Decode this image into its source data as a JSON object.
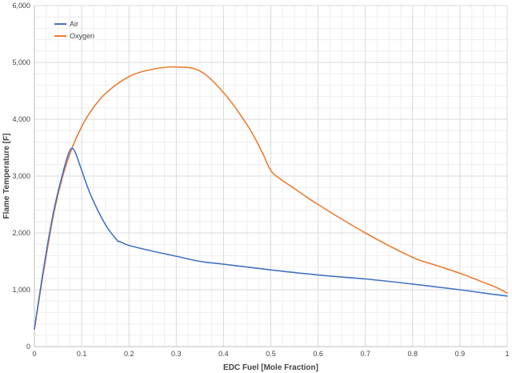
{
  "chart_data": {
    "type": "line",
    "title": "",
    "xlabel": "EDC Fuel [Mole Fraction]",
    "ylabel": "Flame Temperature [F]",
    "xlim": [
      0,
      1
    ],
    "ylim": [
      0,
      6000
    ],
    "x_ticks": [
      "0",
      "0.1",
      "0.2",
      "0.3",
      "0.4",
      "0.5",
      "0.6",
      "0.7",
      "0.8",
      "0.9",
      "1"
    ],
    "y_ticks": [
      "0",
      "1,000",
      "2,000",
      "3,000",
      "4,000",
      "5,000",
      "6,000"
    ],
    "grid": true,
    "legend_position": "top-left",
    "series": [
      {
        "name": "Air",
        "color": "#4472C4",
        "x": [
          0,
          0.02,
          0.04,
          0.06,
          0.075,
          0.085,
          0.1,
          0.12,
          0.15,
          0.175,
          0.18,
          0.2,
          0.25,
          0.3,
          0.35,
          0.4,
          0.5,
          0.6,
          0.7,
          0.8,
          0.9,
          0.97,
          1.0
        ],
        "y": [
          310,
          1400,
          2350,
          3050,
          3450,
          3440,
          3100,
          2650,
          2150,
          1870,
          1850,
          1780,
          1680,
          1590,
          1500,
          1450,
          1350,
          1260,
          1190,
          1100,
          1000,
          920,
          890
        ]
      },
      {
        "name": "Oxygen",
        "color": "#ED7D31",
        "x": [
          0,
          0.02,
          0.04,
          0.06,
          0.08,
          0.1,
          0.12,
          0.15,
          0.2,
          0.25,
          0.3,
          0.35,
          0.4,
          0.45,
          0.48,
          0.5,
          0.52,
          0.55,
          0.6,
          0.7,
          0.8,
          0.85,
          0.9,
          0.95,
          0.98,
          1.0
        ],
        "y": [
          310,
          1350,
          2300,
          3000,
          3500,
          3870,
          4150,
          4450,
          4750,
          4880,
          4920,
          4850,
          4470,
          3900,
          3450,
          3100,
          2950,
          2780,
          2500,
          2000,
          1570,
          1430,
          1290,
          1130,
          1030,
          940
        ]
      }
    ]
  }
}
